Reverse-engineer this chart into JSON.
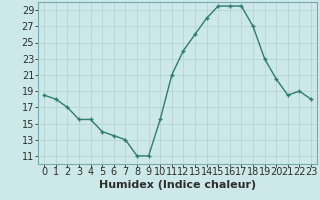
{
  "x": [
    0,
    1,
    2,
    3,
    4,
    5,
    6,
    7,
    8,
    9,
    10,
    11,
    12,
    13,
    14,
    15,
    16,
    17,
    18,
    19,
    20,
    21,
    22,
    23
  ],
  "y": [
    18.5,
    18.0,
    17.0,
    15.5,
    15.5,
    14.0,
    13.5,
    13.0,
    11.0,
    11.0,
    15.5,
    21.0,
    24.0,
    26.0,
    28.0,
    29.5,
    29.5,
    29.5,
    27.0,
    23.0,
    20.5,
    18.5,
    19.0,
    18.0
  ],
  "line_color": "#2e7d6e",
  "marker": "+",
  "bg_color": "#cde8e8",
  "grid_major_color": "#b8d4d4",
  "grid_minor_color": "#d8ecec",
  "xlabel": "Humidex (Indice chaleur)",
  "xlim": [
    -0.5,
    23.5
  ],
  "ylim": [
    10,
    30
  ],
  "yticks": [
    11,
    13,
    15,
    17,
    19,
    21,
    23,
    25,
    27,
    29
  ],
  "xticks": [
    0,
    1,
    2,
    3,
    4,
    5,
    6,
    7,
    8,
    9,
    10,
    11,
    12,
    13,
    14,
    15,
    16,
    17,
    18,
    19,
    20,
    21,
    22,
    23
  ],
  "tick_fontsize": 7,
  "xlabel_fontsize": 8
}
